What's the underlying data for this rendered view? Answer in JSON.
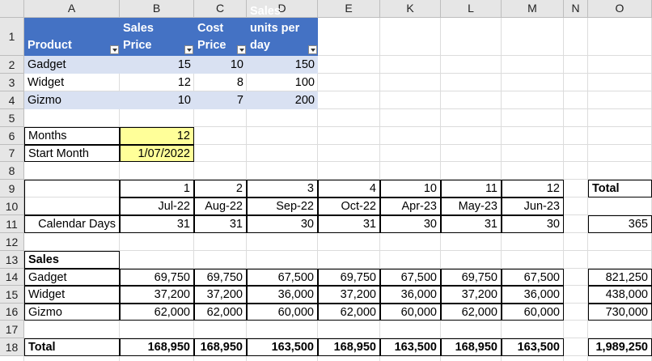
{
  "columns": [
    "A",
    "B",
    "C",
    "D",
    "E",
    "K",
    "L",
    "M",
    "N",
    "O"
  ],
  "rows": [
    "1",
    "2",
    "3",
    "4",
    "5",
    "6",
    "7",
    "8",
    "9",
    "10",
    "11",
    "12",
    "13",
    "14",
    "15",
    "16",
    "17",
    "18"
  ],
  "table": {
    "headers": [
      "Product",
      "Sales Price",
      "Cost Price",
      "Sales units per day"
    ],
    "rows": [
      [
        "Gadget",
        "15",
        "10",
        "150"
      ],
      [
        "Widget",
        "12",
        "8",
        "100"
      ],
      [
        "Gizmo",
        "10",
        "7",
        "200"
      ]
    ]
  },
  "inputs": {
    "months_label": "Months",
    "months_value": "12",
    "start_label": "Start Month",
    "start_value": "1/07/2022"
  },
  "timeline": {
    "period_numbers": [
      "1",
      "2",
      "3",
      "4",
      "10",
      "11",
      "12"
    ],
    "months": [
      "Jul-22",
      "Aug-22",
      "Sep-22",
      "Oct-22",
      "Apr-23",
      "May-23",
      "Jun-23"
    ],
    "days_label": "Calendar Days",
    "days": [
      "31",
      "31",
      "30",
      "31",
      "30",
      "31",
      "30"
    ],
    "total_header": "Total",
    "days_total": "365"
  },
  "sales": {
    "title": "Sales",
    "rows": [
      {
        "name": "Gadget",
        "values": [
          "69,750",
          "69,750",
          "67,500",
          "69,750",
          "67,500",
          "69,750",
          "67,500"
        ],
        "total": "821,250"
      },
      {
        "name": "Widget",
        "values": [
          "37,200",
          "37,200",
          "36,000",
          "37,200",
          "36,000",
          "37,200",
          "36,000"
        ],
        "total": "438,000"
      },
      {
        "name": "Gizmo",
        "values": [
          "62,000",
          "62,000",
          "60,000",
          "62,000",
          "60,000",
          "62,000",
          "60,000"
        ],
        "total": "730,000"
      }
    ],
    "total_label": "Total",
    "totals": [
      "168,950",
      "168,950",
      "163,500",
      "168,950",
      "163,500",
      "168,950",
      "163,500"
    ],
    "grand_total": "1,989,250"
  },
  "colors": {
    "table_header": "#4472c4",
    "table_band": "#d9e1f2",
    "input_fill": "#ffff99",
    "sheet_header": "#e6e6e6"
  }
}
